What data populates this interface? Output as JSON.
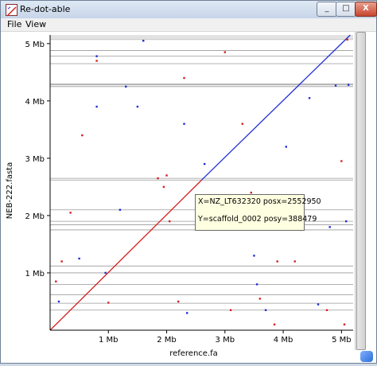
{
  "window": {
    "title": "Re-dot-able",
    "close_glyph": "X",
    "min_glyph": "_",
    "max_glyph": "□"
  },
  "menu": {
    "file": "File",
    "view": "View"
  },
  "plot": {
    "xlabel": "reference.fa",
    "ylabel": "NEB-222.fasta",
    "x_ticks": [
      "1 Mb",
      "2 Mb",
      "3 Mb",
      "4 Mb",
      "5 Mb"
    ],
    "y_ticks": [
      "1 Mb",
      "2 Mb",
      "3 Mb",
      "4 Mb",
      "5 Mb"
    ]
  },
  "tooltip": {
    "line1": "X=NZ_LT632320 posx=2552950",
    "line2": "Y=scaffold_0002 posy=388479"
  },
  "colors": {
    "forward": "#d62020",
    "reverse": "#1f2fd6",
    "separator": "#9a9a9a"
  },
  "chart_data": {
    "type": "scatter",
    "xlabel": "reference.fa",
    "ylabel": "NEB-222.fasta",
    "xlim": [
      0,
      5.2
    ],
    "ylim": [
      0,
      5.15
    ],
    "x_ticks": [
      1,
      2,
      3,
      4,
      5
    ],
    "y_ticks": [
      1,
      2,
      3,
      4,
      5
    ],
    "units": "Mb",
    "main_diagonal": [
      {
        "name": "forward",
        "color": "#d62020",
        "from": [
          0,
          0
        ],
        "to": [
          2.6,
          2.62
        ]
      },
      {
        "name": "reverse",
        "color": "#1f2fd6",
        "from": [
          2.6,
          2.62
        ],
        "to": [
          5.15,
          5.15
        ]
      }
    ],
    "scaffold_boundaries_y": [
      0.35,
      0.47,
      0.62,
      0.8,
      1.0,
      1.12,
      1.75,
      1.84,
      1.9,
      2.1,
      2.62,
      2.65,
      4.25,
      4.28,
      4.3,
      4.65,
      4.78,
      4.88,
      5.07,
      5.12
    ],
    "points": [
      {
        "x": 0.1,
        "y": 0.85,
        "c": "#d62020"
      },
      {
        "x": 0.15,
        "y": 0.5,
        "c": "#1f2fd6"
      },
      {
        "x": 0.2,
        "y": 1.2,
        "c": "#d62020"
      },
      {
        "x": 0.35,
        "y": 2.05,
        "c": "#d62020"
      },
      {
        "x": 0.5,
        "y": 1.25,
        "c": "#1f2fd6"
      },
      {
        "x": 0.55,
        "y": 3.4,
        "c": "#d62020"
      },
      {
        "x": 0.8,
        "y": 4.7,
        "c": "#d62020"
      },
      {
        "x": 0.8,
        "y": 4.78,
        "c": "#1f2fd6"
      },
      {
        "x": 0.8,
        "y": 3.9,
        "c": "#1f2fd6"
      },
      {
        "x": 0.95,
        "y": 1.0,
        "c": "#1f2fd6"
      },
      {
        "x": 1.0,
        "y": 0.48,
        "c": "#d62020"
      },
      {
        "x": 1.2,
        "y": 2.1,
        "c": "#1f2fd6"
      },
      {
        "x": 1.3,
        "y": 4.25,
        "c": "#1f2fd6"
      },
      {
        "x": 1.5,
        "y": 3.9,
        "c": "#1f2fd6"
      },
      {
        "x": 1.6,
        "y": 5.05,
        "c": "#1f2fd6"
      },
      {
        "x": 1.85,
        "y": 2.65,
        "c": "#d62020"
      },
      {
        "x": 1.95,
        "y": 2.5,
        "c": "#d62020"
      },
      {
        "x": 2.0,
        "y": 2.7,
        "c": "#d62020"
      },
      {
        "x": 2.05,
        "y": 1.9,
        "c": "#d62020"
      },
      {
        "x": 2.2,
        "y": 0.5,
        "c": "#d62020"
      },
      {
        "x": 2.3,
        "y": 3.6,
        "c": "#1f2fd6"
      },
      {
        "x": 2.3,
        "y": 4.4,
        "c": "#d62020"
      },
      {
        "x": 2.35,
        "y": 0.3,
        "c": "#1f2fd6"
      },
      {
        "x": 2.5,
        "y": 1.85,
        "c": "#d62020"
      },
      {
        "x": 2.65,
        "y": 2.9,
        "c": "#1f2fd6"
      },
      {
        "x": 2.8,
        "y": 2.1,
        "c": "#1f2fd6"
      },
      {
        "x": 3.0,
        "y": 4.85,
        "c": "#d62020"
      },
      {
        "x": 3.1,
        "y": 0.35,
        "c": "#d62020"
      },
      {
        "x": 3.3,
        "y": 3.6,
        "c": "#d62020"
      },
      {
        "x": 3.45,
        "y": 2.4,
        "c": "#d62020"
      },
      {
        "x": 3.5,
        "y": 1.3,
        "c": "#1f2fd6"
      },
      {
        "x": 3.55,
        "y": 0.8,
        "c": "#1f2fd6"
      },
      {
        "x": 3.6,
        "y": 0.55,
        "c": "#d62020"
      },
      {
        "x": 3.7,
        "y": 0.35,
        "c": "#1f2fd6"
      },
      {
        "x": 3.85,
        "y": 0.1,
        "c": "#d62020"
      },
      {
        "x": 3.9,
        "y": 1.2,
        "c": "#d62020"
      },
      {
        "x": 4.05,
        "y": 3.2,
        "c": "#1f2fd6"
      },
      {
        "x": 4.1,
        "y": 1.85,
        "c": "#1f2fd6"
      },
      {
        "x": 4.2,
        "y": 1.2,
        "c": "#d62020"
      },
      {
        "x": 4.3,
        "y": 1.75,
        "c": "#d62020"
      },
      {
        "x": 4.45,
        "y": 4.05,
        "c": "#1f2fd6"
      },
      {
        "x": 4.6,
        "y": 0.45,
        "c": "#1f2fd6"
      },
      {
        "x": 4.75,
        "y": 0.35,
        "c": "#d62020"
      },
      {
        "x": 4.8,
        "y": 1.8,
        "c": "#1f2fd6"
      },
      {
        "x": 4.9,
        "y": 4.27,
        "c": "#1f2fd6"
      },
      {
        "x": 5.0,
        "y": 2.95,
        "c": "#d62020"
      },
      {
        "x": 5.05,
        "y": 0.1,
        "c": "#d62020"
      },
      {
        "x": 5.08,
        "y": 1.9,
        "c": "#1f2fd6"
      },
      {
        "x": 5.1,
        "y": 5.07,
        "c": "#d62020"
      },
      {
        "x": 5.12,
        "y": 4.28,
        "c": "#1f2fd6"
      }
    ]
  }
}
